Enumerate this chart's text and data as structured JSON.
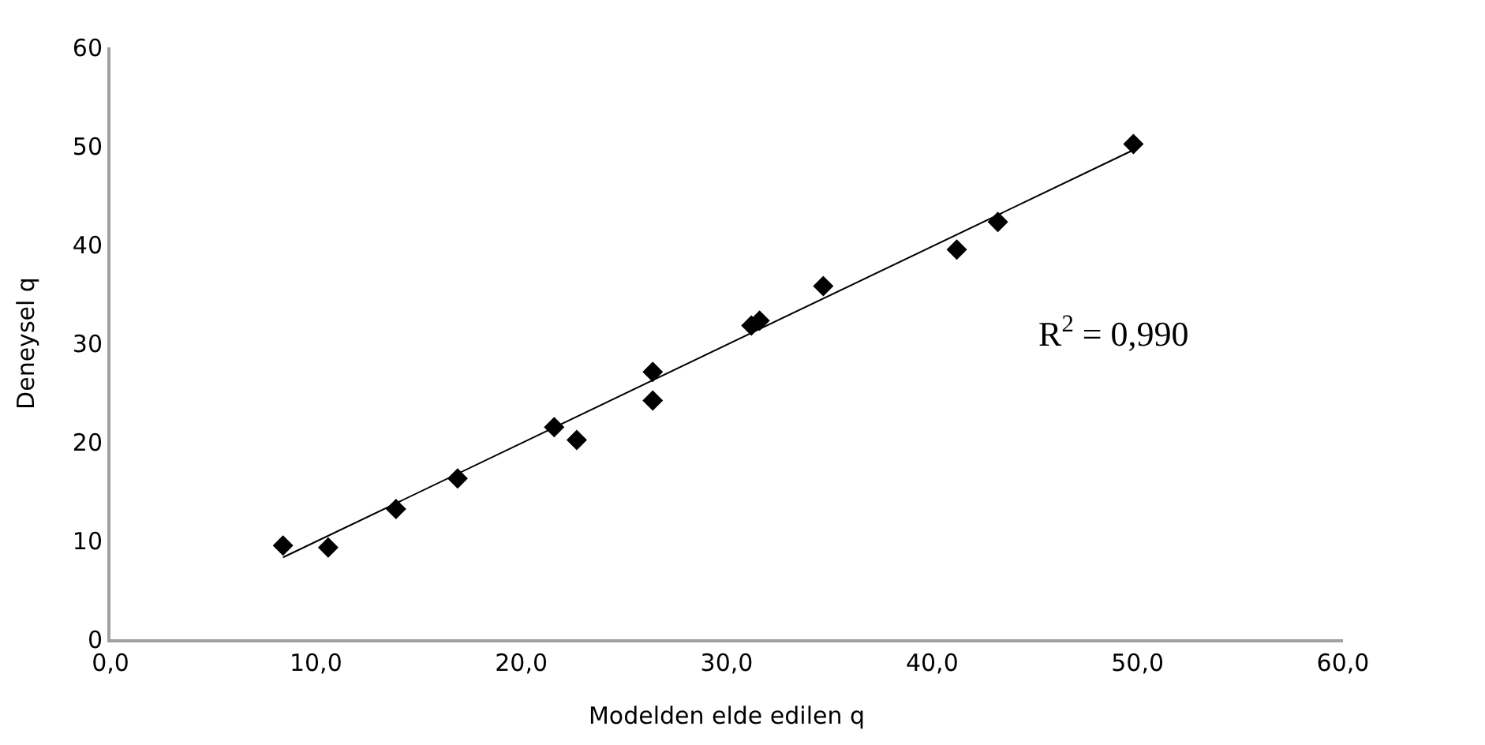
{
  "chart_data": {
    "type": "scatter",
    "xlabel": "Modelden elde edilen q",
    "ylabel": "Deneysel q",
    "xlim": [
      0,
      60
    ],
    "ylim": [
      0,
      60
    ],
    "xticks": [
      {
        "value": 0,
        "label": "0,0"
      },
      {
        "value": 10,
        "label": "10,0"
      },
      {
        "value": 20,
        "label": "20,0"
      },
      {
        "value": 30,
        "label": "30,0"
      },
      {
        "value": 40,
        "label": "40,0"
      },
      {
        "value": 50,
        "label": "50,0"
      },
      {
        "value": 60,
        "label": "60,0"
      }
    ],
    "yticks": [
      0,
      10,
      20,
      30,
      40,
      50,
      60
    ],
    "series": [
      {
        "marker": "diamond",
        "color": "#000000",
        "x": [
          8.4,
          10.6,
          13.9,
          16.9,
          21.6,
          22.7,
          26.4,
          26.4,
          31.2,
          31.6,
          34.7,
          41.2,
          43.2,
          49.8
        ],
        "values": [
          9.5,
          9.3,
          13.2,
          16.3,
          21.5,
          20.2,
          27.1,
          24.2,
          31.8,
          32.3,
          35.8,
          39.5,
          42.3,
          50.2
        ]
      },
      {
        "type": "line",
        "marker": "none",
        "line_style": "solid",
        "color": "#000000",
        "x": [
          8.4,
          49.8
        ],
        "values": [
          8.3,
          49.6
        ]
      }
    ],
    "annotations": [
      "R$^{2}$ = 0,990"
    ]
  }
}
